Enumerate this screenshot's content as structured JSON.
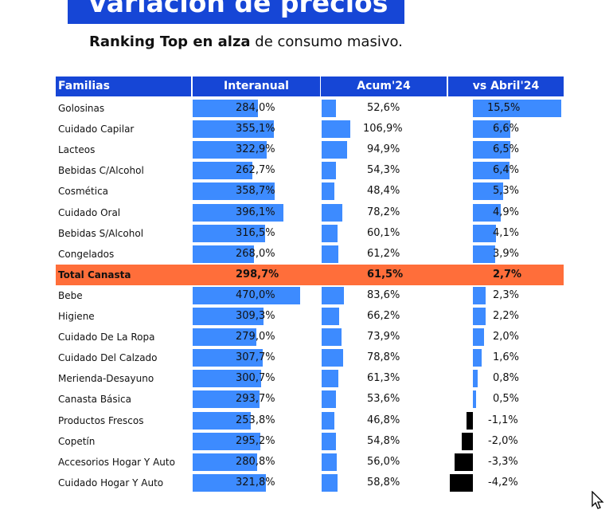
{
  "header": {
    "title": "Variación de precios",
    "subtitle_bold": "Ranking Top en alza",
    "subtitle_rest": " de consumo masivo."
  },
  "chart_data": {
    "type": "table",
    "columns": [
      "Familias",
      "Interanual",
      "Acum'24",
      "vs Abril'24"
    ],
    "rows": [
      {
        "name": "Golosinas",
        "interanual": 284.0,
        "acum": 52.6,
        "vs": 15.5,
        "interanual_label": "284,0%",
        "acum_label": "52,6%",
        "vs_label": "15,5%"
      },
      {
        "name": "Cuidado Capilar",
        "interanual": 355.1,
        "acum": 106.9,
        "vs": 6.6,
        "interanual_label": "355,1%",
        "acum_label": "106,9%",
        "vs_label": "6,6%"
      },
      {
        "name": "Lacteos",
        "interanual": 322.9,
        "acum": 94.9,
        "vs": 6.5,
        "interanual_label": "322,9%",
        "acum_label": "94,9%",
        "vs_label": "6,5%"
      },
      {
        "name": "Bebidas C/Alcohol",
        "interanual": 262.7,
        "acum": 54.3,
        "vs": 6.4,
        "interanual_label": "262,7%",
        "acum_label": "54,3%",
        "vs_label": "6,4%"
      },
      {
        "name": "Cosmética",
        "interanual": 358.7,
        "acum": 48.4,
        "vs": 5.3,
        "interanual_label": "358,7%",
        "acum_label": "48,4%",
        "vs_label": "5,3%"
      },
      {
        "name": "Cuidado Oral",
        "interanual": 396.1,
        "acum": 78.2,
        "vs": 4.9,
        "interanual_label": "396,1%",
        "acum_label": "78,2%",
        "vs_label": "4,9%"
      },
      {
        "name": "Bebidas S/Alcohol",
        "interanual": 316.5,
        "acum": 60.1,
        "vs": 4.1,
        "interanual_label": "316,5%",
        "acum_label": "60,1%",
        "vs_label": "4,1%"
      },
      {
        "name": "Congelados",
        "interanual": 268.0,
        "acum": 61.2,
        "vs": 3.9,
        "interanual_label": "268,0%",
        "acum_label": "61,2%",
        "vs_label": "3,9%"
      },
      {
        "name": "Total Canasta",
        "interanual": 298.7,
        "acum": 61.5,
        "vs": 2.7,
        "interanual_label": "298,7%",
        "acum_label": "61,5%",
        "vs_label": "2,7%",
        "highlight": true
      },
      {
        "name": "Bebe",
        "interanual": 470.0,
        "acum": 83.6,
        "vs": 2.3,
        "interanual_label": "470,0%",
        "acum_label": "83,6%",
        "vs_label": "2,3%"
      },
      {
        "name": "Higiene",
        "interanual": 309.3,
        "acum": 66.2,
        "vs": 2.2,
        "interanual_label": "309,3%",
        "acum_label": "66,2%",
        "vs_label": "2,2%"
      },
      {
        "name": "Cuidado De La Ropa",
        "interanual": 279.0,
        "acum": 73.9,
        "vs": 2.0,
        "interanual_label": "279,0%",
        "acum_label": "73,9%",
        "vs_label": "2,0%"
      },
      {
        "name": "Cuidado Del Calzado",
        "interanual": 307.7,
        "acum": 78.8,
        "vs": 1.6,
        "interanual_label": "307,7%",
        "acum_label": "78,8%",
        "vs_label": "1,6%"
      },
      {
        "name": "Merienda-Desayuno",
        "interanual": 300.7,
        "acum": 61.3,
        "vs": 0.8,
        "interanual_label": "300,7%",
        "acum_label": "61,3%",
        "vs_label": "0,8%"
      },
      {
        "name": "Canasta Básica",
        "interanual": 293.7,
        "acum": 53.6,
        "vs": 0.5,
        "interanual_label": "293,7%",
        "acum_label": "53,6%",
        "vs_label": "0,5%"
      },
      {
        "name": "Productos Frescos",
        "interanual": 253.8,
        "acum": 46.8,
        "vs": -1.1,
        "interanual_label": "253,8%",
        "acum_label": "46,8%",
        "vs_label": "-1,1%"
      },
      {
        "name": "Copetín",
        "interanual": 295.2,
        "acum": 54.8,
        "vs": -2.0,
        "interanual_label": "295,2%",
        "acum_label": "54,8%",
        "vs_label": "-2,0%"
      },
      {
        "name": "Accesorios Hogar Y Auto",
        "interanual": 280.8,
        "acum": 56.0,
        "vs": -3.3,
        "interanual_label": "280,8%",
        "acum_label": "56,0%",
        "vs_label": "-3,3%"
      },
      {
        "name": "Cuidado Hogar Y Auto",
        "interanual": 321.8,
        "acum": 58.8,
        "vs": -4.2,
        "interanual_label": "321,8%",
        "acum_label": "58,8%",
        "vs_label": "-4,2%"
      }
    ]
  },
  "colors": {
    "header_blue": "#1646d6",
    "bar_blue": "#3d8bff",
    "negative_bar": "#000000",
    "highlight_orange": "#ff6e3a"
  },
  "icons": {
    "cursor": "mouse-pointer-icon"
  }
}
